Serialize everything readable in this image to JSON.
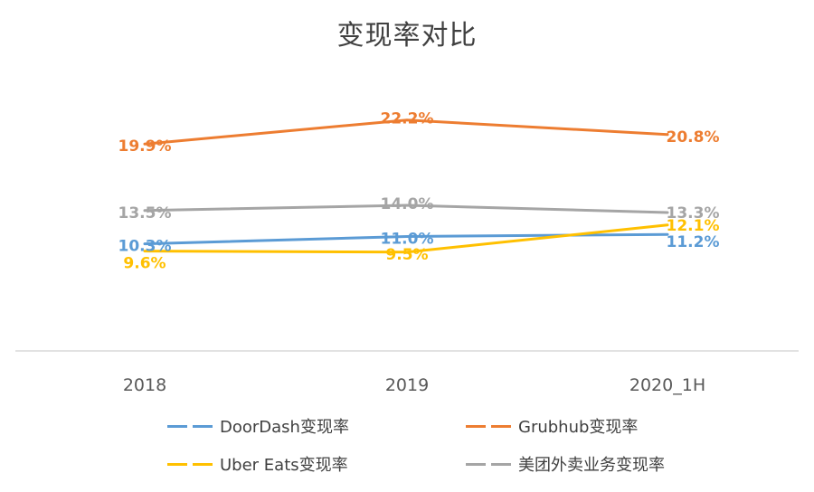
{
  "chart_data": {
    "type": "line",
    "title": "变现率对比",
    "categories": [
      "2018",
      "2019",
      "2020_1H"
    ],
    "ylim": [
      0,
      25
    ],
    "grid": false,
    "legend_position": "bottom",
    "series": [
      {
        "name": "DoorDash变现率",
        "color": "#5B9BD5",
        "values": [
          10.3,
          11.0,
          11.2
        ],
        "labels": [
          "10.3%",
          "11.0%",
          "11.2%"
        ]
      },
      {
        "name": "Grubhub变现率",
        "color": "#ED7D31",
        "values": [
          19.9,
          22.2,
          20.8
        ],
        "labels": [
          "19.9%",
          "22.2%",
          "20.8%"
        ]
      },
      {
        "name": "Uber Eats变现率",
        "color": "#FFC000",
        "values": [
          9.6,
          9.5,
          12.1
        ],
        "labels": [
          "9.6%",
          "9.5%",
          "12.1%"
        ]
      },
      {
        "name": "美团外卖业务变现率",
        "color": "#A5A5A5",
        "values": [
          13.5,
          14.0,
          13.3
        ],
        "labels": [
          "13.5%",
          "14.0%",
          "13.3%"
        ]
      }
    ]
  }
}
